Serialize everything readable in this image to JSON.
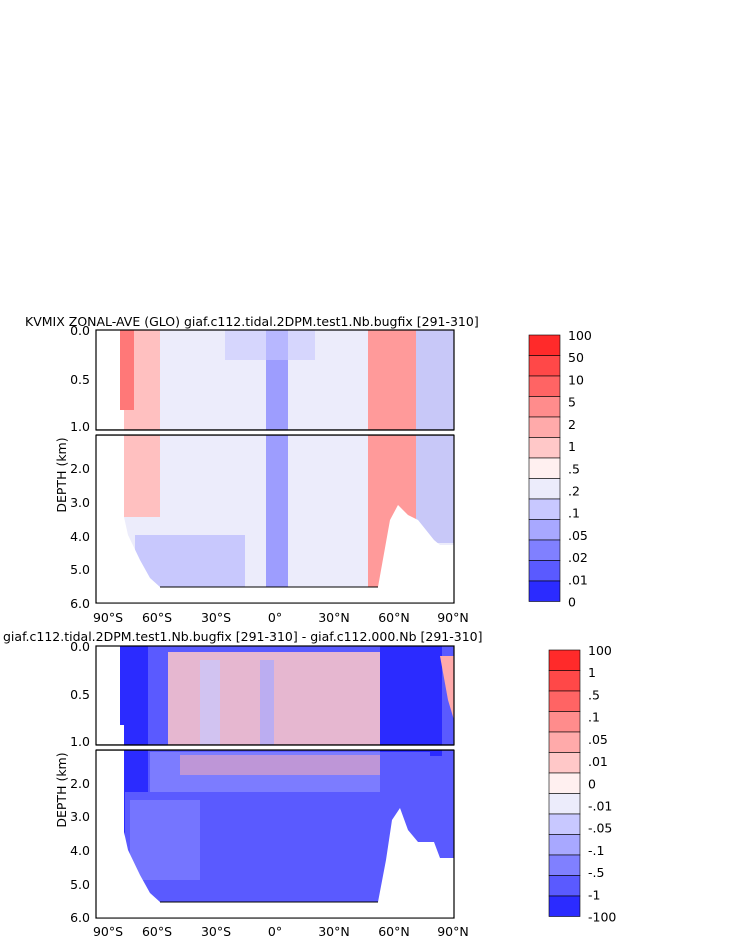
{
  "chart_data": [
    {
      "type": "heatmap",
      "title": "KVMIX ZONAL-AVE (GLO) giaf.c112.tidal.2DPM.test1.Nb.bugfix [291-310]",
      "xlabel": "",
      "ylabel": "DEPTH (km)",
      "xlim": [
        -90,
        90
      ],
      "ylim": [
        6.0,
        0.0
      ],
      "x_ticks": [
        "90°S",
        "60°S",
        "30°S",
        "0°",
        "30°N",
        "60°N",
        "90°N"
      ],
      "y_ticks_upper": [
        "0.0",
        "0.5",
        "1.0"
      ],
      "y_ticks_lower": [
        "2.0",
        "3.0",
        "4.0",
        "5.0",
        "6.0"
      ],
      "legend": {
        "labels": [
          "100",
          "50",
          "10",
          "5",
          "2",
          "1",
          ".5",
          ".2",
          ".1",
          ".05",
          ".02",
          ".01",
          "0"
        ],
        "colors": [
          "#ff2a2a",
          "#ff4848",
          "#ff6464",
          "#ff8c8c",
          "#ffaaaa",
          "#ffc8c8",
          "#fff0f0",
          "#ececfb",
          "#c8c8ff",
          "#a8a8ff",
          "#8080ff",
          "#5a5aff",
          "#2b2bff"
        ]
      },
      "regions": [
        {
          "desc": "southern boundary band",
          "lat": [
            -76,
            -68
          ],
          "depth": [
            0,
            1.0
          ],
          "color": "#ff7878"
        },
        {
          "desc": "southern ocean band",
          "lat": [
            -72,
            -60
          ],
          "depth": [
            0,
            3.7
          ],
          "color": "#ffc0c0"
        },
        {
          "desc": "interior",
          "lat": [
            -60,
            52
          ],
          "depth": [
            0,
            5.5
          ],
          "color": "#ececfb"
        },
        {
          "desc": "equator column",
          "lat": [
            -4,
            4
          ],
          "depth": [
            0,
            5.5
          ],
          "color": "#8a8aff"
        },
        {
          "desc": "north atlantic band",
          "lat": [
            50,
            72
          ],
          "depth": [
            0,
            3.8
          ],
          "color": "#ff9a9a"
        },
        {
          "desc": "arctic",
          "lat": [
            72,
            90
          ],
          "depth": [
            0,
            4.2
          ],
          "color": "#c8c8f8"
        }
      ]
    },
    {
      "type": "heatmap",
      "title": "giaf.c112.tidal.2DPM.test1.Nb.bugfix [291-310] - giaf.c112.000.Nb [291-310]",
      "xlabel": "",
      "ylabel": "DEPTH (km)",
      "xlim": [
        -90,
        90
      ],
      "ylim": [
        6.0,
        0.0
      ],
      "x_ticks": [
        "90°S",
        "60°S",
        "30°S",
        "0°",
        "30°N",
        "60°N",
        "90°N"
      ],
      "y_ticks_upper": [
        "0.0",
        "0.5",
        "1.0"
      ],
      "y_ticks_lower": [
        "2.0",
        "3.0",
        "4.0",
        "5.0",
        "6.0"
      ],
      "legend": {
        "labels": [
          "100",
          "1",
          ".5",
          ".1",
          ".05",
          ".01",
          "0",
          "-.01",
          "-.05",
          "-.1",
          "-.5",
          "-1",
          "-100"
        ],
        "colors": [
          "#ff2a2a",
          "#ff4848",
          "#ff6464",
          "#ff8c8c",
          "#ffaaaa",
          "#ffc8c8",
          "#fff0f0",
          "#ececfb",
          "#c8c8ff",
          "#a8a8ff",
          "#8080ff",
          "#5a5aff",
          "#2b2bff"
        ]
      },
      "regions": [
        {
          "desc": "southern strip",
          "lat": [
            -78,
            -68
          ],
          "depth": [
            0,
            5.5
          ],
          "color": "#2b2bff"
        },
        {
          "desc": "upper interior",
          "lat": [
            -60,
            50
          ],
          "depth": [
            0,
            1.0
          ],
          "color": "#ffc8c8"
        },
        {
          "desc": "lower interior",
          "lat": [
            -60,
            50
          ],
          "depth": [
            1.0,
            5.5
          ],
          "color": "#5a5aff"
        },
        {
          "desc": "northern",
          "lat": [
            50,
            85
          ],
          "depth": [
            0,
            3.8
          ],
          "color": "#2b2bff"
        }
      ]
    }
  ]
}
